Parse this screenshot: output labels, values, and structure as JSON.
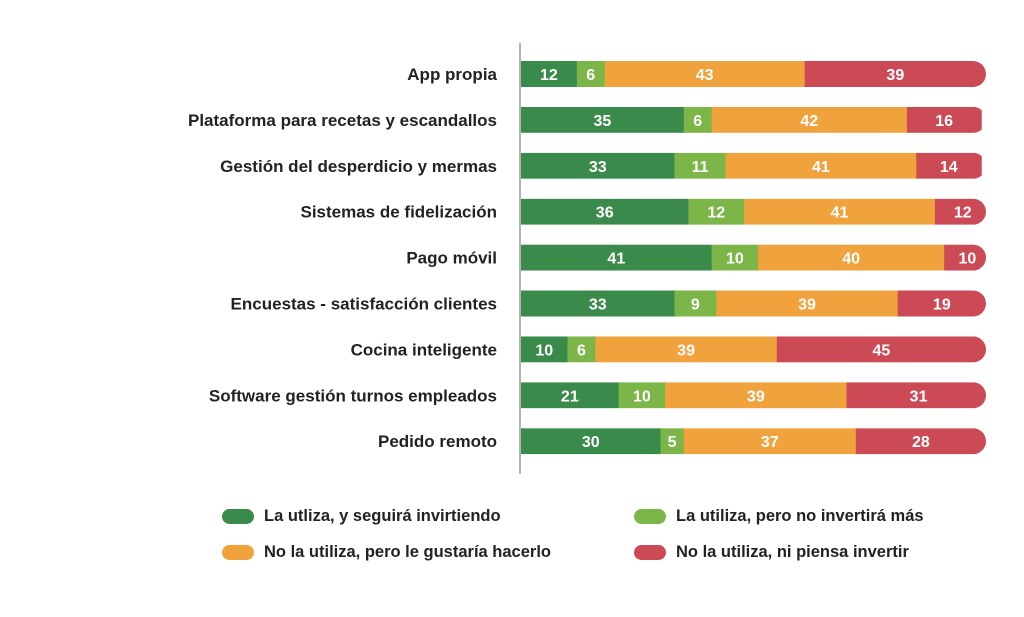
{
  "chart_data": {
    "type": "bar",
    "orientation": "horizontal",
    "stacked": true,
    "categories": [
      "App propia",
      "Plataforma para recetas y escandallos",
      "Gestión del desperdicio y mermas",
      "Sistemas de fidelización",
      "Pago móvil",
      "Encuestas - satisfacción clientes",
      "Cocina inteligente",
      "Software gestión turnos empleados",
      "Pedido remoto"
    ],
    "series": [
      {
        "name": "La utliza, y seguirá invirtiendo",
        "color": "#3a8a4b",
        "values": [
          12,
          35,
          33,
          36,
          41,
          33,
          10,
          21,
          30
        ]
      },
      {
        "name": "La utiliza, pero no invertirá más",
        "color": "#7cb548",
        "values": [
          6,
          6,
          11,
          12,
          10,
          9,
          6,
          10,
          5
        ]
      },
      {
        "name": "No la utiliza, pero le gustaría hacerlo",
        "color": "#f0a33c",
        "values": [
          43,
          42,
          41,
          41,
          40,
          39,
          39,
          39,
          37
        ]
      },
      {
        "name": "No la utiliza, ni piensa invertir",
        "color": "#cb4a55",
        "values": [
          39,
          16,
          14,
          12,
          10,
          19,
          45,
          31,
          28
        ]
      }
    ],
    "xlim": [
      0,
      100
    ],
    "grid": false,
    "legend_position": "bottom"
  },
  "legend": {
    "items": [
      {
        "label": "La utliza, y seguirá invirtiendo",
        "color": "#3a8a4b"
      },
      {
        "label": "La utiliza, pero no invertirá más",
        "color": "#7cb548"
      },
      {
        "label": "No la utiliza, pero le gustaría hacerlo",
        "color": "#f0a33c"
      },
      {
        "label": "No la utiliza, ni piensa invertir",
        "color": "#cb4a55"
      }
    ]
  }
}
